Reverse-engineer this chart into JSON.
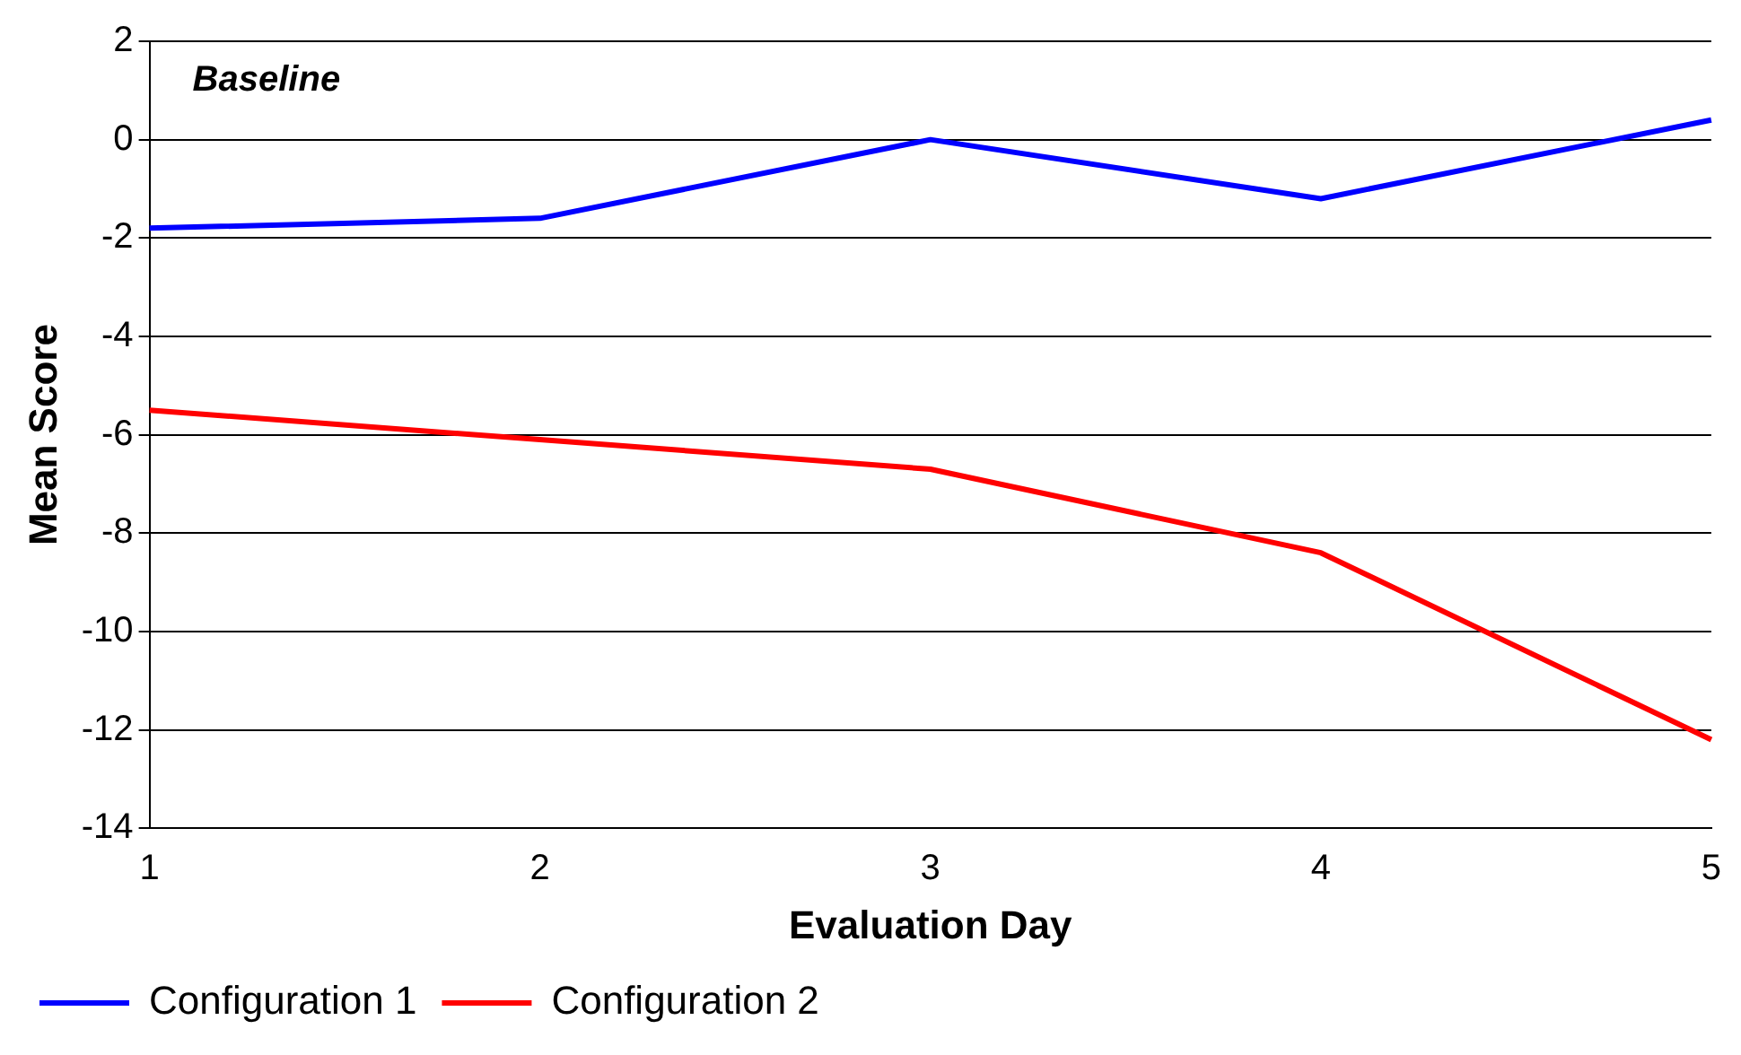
{
  "chart_data": {
    "type": "line",
    "xlabel": "Evaluation Day",
    "ylabel": "Mean Score",
    "annotations": [
      "Baseline"
    ],
    "categories": [
      "1",
      "2",
      "3",
      "4",
      "5"
    ],
    "series": [
      {
        "name": "Configuration 1",
        "color": "#0000ff",
        "values": [
          -1.8,
          -1.6,
          0,
          -1.2,
          0.4
        ]
      },
      {
        "name": "Configuration 2",
        "color": "#ff0000",
        "values": [
          -5.5,
          -6.1,
          -6.7,
          -8.4,
          -12.2
        ]
      }
    ],
    "ylim": [
      -14,
      2
    ],
    "yticks": [
      -14,
      -12,
      -10,
      -8,
      -6,
      -4,
      -2,
      0,
      2
    ],
    "grid": "y",
    "legend": "bottom left",
    "marker": "none",
    "line_style": "solid"
  }
}
